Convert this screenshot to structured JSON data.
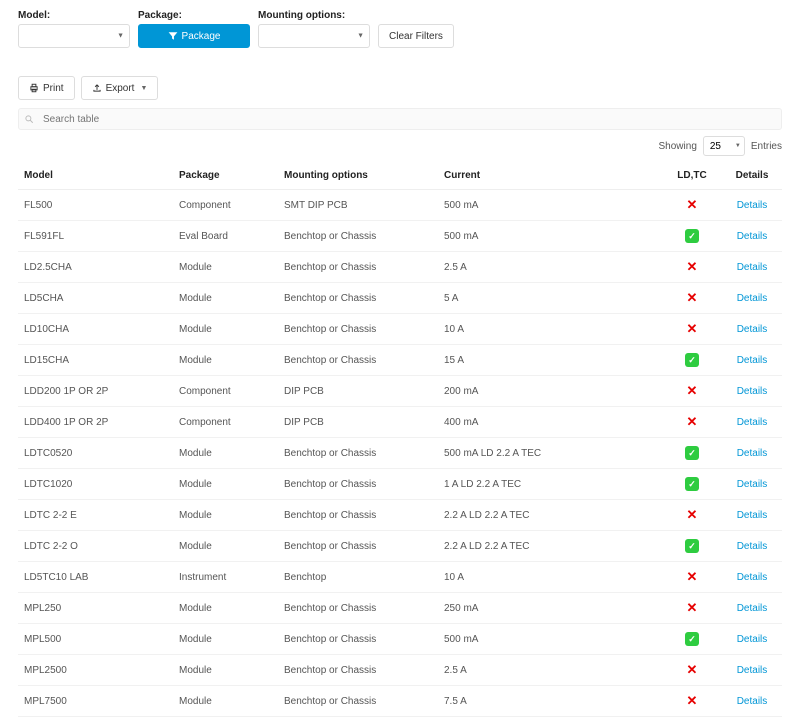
{
  "filters": {
    "model": {
      "label": "Model:",
      "value": ""
    },
    "package": {
      "label": "Package:",
      "button": "Package"
    },
    "mounting": {
      "label": "Mounting options:",
      "value": ""
    },
    "clear": "Clear Filters"
  },
  "toolbar": {
    "print": "Print",
    "export": "Export"
  },
  "search": {
    "placeholder": "Search table"
  },
  "entries": {
    "showing": "Showing",
    "count": "25",
    "entries_label": "Entries"
  },
  "columns": {
    "model": "Model",
    "package": "Package",
    "mounting": "Mounting options",
    "current": "Current",
    "ldtc": "LD,TC",
    "details": "Details"
  },
  "detailsLabel": "Details",
  "rows": [
    {
      "model": "FL500",
      "package": "Component",
      "mounting": "SMT DIP PCB",
      "current": "500 mA",
      "ldtc": false
    },
    {
      "model": "FL591FL",
      "package": "Eval Board",
      "mounting": "Benchtop or Chassis",
      "current": "500 mA",
      "ldtc": true
    },
    {
      "model": "LD2.5CHA",
      "package": "Module",
      "mounting": "Benchtop or Chassis",
      "current": "2.5 A",
      "ldtc": false
    },
    {
      "model": "LD5CHA",
      "package": "Module",
      "mounting": "Benchtop or Chassis",
      "current": "5 A",
      "ldtc": false
    },
    {
      "model": "LD10CHA",
      "package": "Module",
      "mounting": "Benchtop or Chassis",
      "current": "10 A",
      "ldtc": false
    },
    {
      "model": "LD15CHA",
      "package": "Module",
      "mounting": "Benchtop or Chassis",
      "current": "15 A",
      "ldtc": true
    },
    {
      "model": "LDD200 1P OR 2P",
      "package": "Component",
      "mounting": "DIP PCB",
      "current": "200 mA",
      "ldtc": false
    },
    {
      "model": "LDD400 1P OR 2P",
      "package": "Component",
      "mounting": "DIP PCB",
      "current": "400 mA",
      "ldtc": false
    },
    {
      "model": "LDTC0520",
      "package": "Module",
      "mounting": "Benchtop or Chassis",
      "current": "500 mA LD  2.2 A TEC",
      "ldtc": true
    },
    {
      "model": "LDTC1020",
      "package": "Module",
      "mounting": "Benchtop or Chassis",
      "current": "1 A LD  2.2 A TEC",
      "ldtc": true
    },
    {
      "model": "LDTC 2-2 E",
      "package": "Module",
      "mounting": "Benchtop or Chassis",
      "current": "2.2 A LD  2.2 A TEC",
      "ldtc": false
    },
    {
      "model": "LDTC 2-2 O",
      "package": "Module",
      "mounting": "Benchtop or Chassis",
      "current": "2.2 A LD  2.2 A TEC",
      "ldtc": true
    },
    {
      "model": "LD5TC10 LAB",
      "package": "Instrument",
      "mounting": "Benchtop",
      "current": "10 A",
      "ldtc": false
    },
    {
      "model": "MPL250",
      "package": "Module",
      "mounting": "Benchtop or Chassis",
      "current": "250 mA",
      "ldtc": false
    },
    {
      "model": "MPL500",
      "package": "Module",
      "mounting": "Benchtop or Chassis",
      "current": "500 mA",
      "ldtc": true
    },
    {
      "model": "MPL2500",
      "package": "Module",
      "mounting": "Benchtop or Chassis",
      "current": "2.5 A",
      "ldtc": false
    },
    {
      "model": "MPL7500",
      "package": "Module",
      "mounting": "Benchtop or Chassis",
      "current": "7.5 A",
      "ldtc": false
    }
  ]
}
